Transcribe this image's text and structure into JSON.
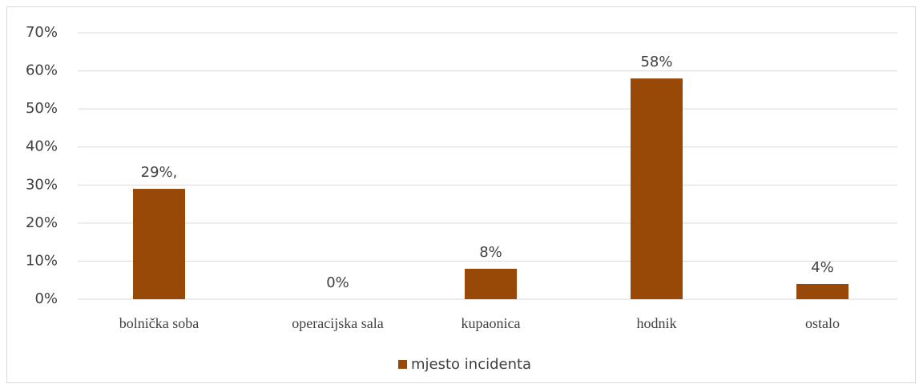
{
  "chart_data": {
    "type": "bar",
    "categories": [
      "bolnička soba",
      "operacijska sala",
      "kupaonica",
      "hodnik",
      "ostalo"
    ],
    "series": [
      {
        "name": "mjesto incidenta",
        "color": "#984807",
        "values": [
          29,
          0,
          8,
          58,
          4
        ],
        "value_labels": [
          "29%,",
          "0%",
          "8%",
          "58%",
          "4%"
        ]
      }
    ],
    "ylim": [
      0,
      70
    ],
    "yticks": [
      {
        "value": 0,
        "label": "0%"
      },
      {
        "value": 10,
        "label": "10%"
      },
      {
        "value": 20,
        "label": "20%"
      },
      {
        "value": 30,
        "label": "30%"
      },
      {
        "value": 40,
        "label": "40%"
      },
      {
        "value": 50,
        "label": "50%"
      },
      {
        "value": 60,
        "label": "60%"
      },
      {
        "value": 70,
        "label": "70%"
      }
    ],
    "grid": true,
    "legend": "bottom"
  }
}
